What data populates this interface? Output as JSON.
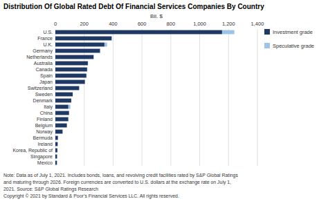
{
  "chart_data": {
    "type": "bar",
    "orientation": "horizontal",
    "stacked": true,
    "title": "Distribution Of Global Rated Debt Of Financial Services Companies By Country",
    "xlabel": "Bil. $",
    "categories": [
      "U.S.",
      "France",
      "U.K.",
      "Germany",
      "Netherlands",
      "Australia",
      "Canada",
      "Spain",
      "Japan",
      "Switzerland",
      "Sweden",
      "Denmark",
      "Italy",
      "China",
      "Finland",
      "Belgium",
      "Norway",
      "Bermuda",
      "Ireland",
      "Korea, Republic of",
      "Singapore",
      "Mexico"
    ],
    "series": [
      {
        "name": "Investment grade",
        "color": "#1f3864",
        "values": [
          1155,
          390,
          340,
          310,
          265,
          225,
          220,
          215,
          205,
          165,
          120,
          110,
          90,
          95,
          90,
          80,
          50,
          18,
          16,
          14,
          12,
          11
        ]
      },
      {
        "name": "Speculative grade",
        "color": "#9dc3e6",
        "values": [
          85,
          4,
          18,
          2,
          2,
          2,
          2,
          2,
          1,
          1,
          1,
          1,
          14,
          1,
          1,
          1,
          1,
          1,
          1,
          1,
          1,
          1
        ]
      }
    ],
    "xlim": [
      0,
      1400
    ],
    "xticks": [
      0,
      200,
      400,
      600,
      800,
      {
        "value": 1000,
        "label": "1,000"
      },
      {
        "value": 1200,
        "label": "1,200"
      },
      {
        "value": 1400,
        "label": "1,400"
      }
    ],
    "grid": true,
    "legend": "right",
    "annotations": [
      "Note: Data as of July 1, 2021. Includes bonds, loans, and revolving credit facilities rated by S&P Global Ratings",
      "and maturing through 2026. Foreign currencies are converted to U.S. dollars at the exchange rate on July 1,",
      "2021. Source: S&P Global Ratings Research",
      "Copyright © 2021 by Standard & Poor’s Financial Services LLC. All rights reserved."
    ]
  }
}
